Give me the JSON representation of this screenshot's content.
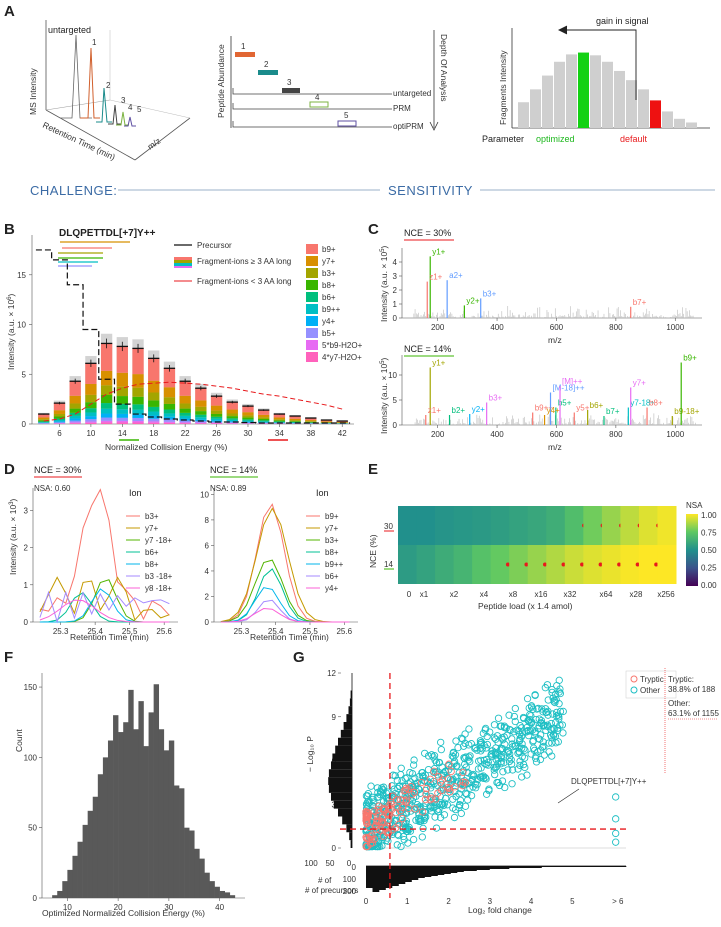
{
  "panels": {
    "A": "A",
    "B": "B",
    "C": "C",
    "D": "D",
    "E": "E",
    "F": "F",
    "G": "G"
  },
  "challenge": {
    "left": "CHALLENGE:",
    "right": "SENSITIVITY"
  },
  "panelA": {
    "chromatogram": {
      "untargeted": "untargeted",
      "ylabel": "MS Intensity",
      "xlabel": "Retention Time (min)",
      "zlabel": "m/z",
      "peaks": [
        "1",
        "2",
        "3",
        "4",
        "5"
      ]
    },
    "depth": {
      "ylabel": "Peptide Abundance",
      "rlabel": "Depth Of Analysis",
      "rows": [
        "untargeted",
        "PRM",
        "optiPRM"
      ],
      "bars": [
        "1",
        "2",
        "3",
        "4",
        "5"
      ]
    },
    "gain": {
      "ylabel": "Fragments Intensity",
      "title": "gain in signal",
      "param": "Parameter",
      "optimized": "optimized",
      "default": "default",
      "bar_values": [
        0.28,
        0.42,
        0.57,
        0.72,
        0.8,
        0.82,
        0.79,
        0.72,
        0.62,
        0.52,
        0.42,
        0.3,
        0.18,
        0.1,
        0.06
      ],
      "optimized_index": 5,
      "default_index": 11
    }
  },
  "panelB": {
    "peptide": "DLQPETTDL[+7]Y++",
    "ylabel": "Intensity (a.u. × 10",
    "ylabel_exp": "6",
    "ylabel_close": ")",
    "xlabel": "Normalized Collision Energy (%)",
    "yticks": [
      "0",
      "5",
      "10",
      "15"
    ],
    "xticks": [
      "6",
      "10",
      "14",
      "18",
      "22",
      "26",
      "30",
      "34",
      "38",
      "42"
    ],
    "legend_lines": [
      "Precursor",
      "Fragment-ions ≥ 3 AA long",
      "Fragment-ions < 3 AA long"
    ],
    "ions": [
      "b9+",
      "y7+",
      "b3+",
      "b8+",
      "b6+",
      "b9++",
      "y4+",
      "b5+",
      "5*b9-H2O+",
      "4*y7-H2O+"
    ],
    "ion_colors": [
      "#f8766d",
      "#d89000",
      "#a3a500",
      "#39b600",
      "#00bf7d",
      "#00bfc4",
      "#00b0f6",
      "#9590ff",
      "#e76bf3",
      "#ff62bc"
    ],
    "nce": [
      4,
      6,
      8,
      10,
      12,
      14,
      16,
      18,
      20,
      22,
      24,
      26,
      28,
      30,
      32,
      34,
      36,
      38,
      40,
      42
    ],
    "stack_totals": [
      1.0,
      2.1,
      4.3,
      6.1,
      8.1,
      7.8,
      7.6,
      6.6,
      5.6,
      4.3,
      3.6,
      2.8,
      2.2,
      1.8,
      1.4,
      1.0,
      0.8,
      0.6,
      0.4,
      0.3
    ],
    "precursor": [
      17.5,
      16.5,
      14.0,
      9.5,
      4.5,
      2.0,
      1.0,
      0.7,
      0.5,
      0.4,
      0.3,
      0.2,
      0.2,
      0.15,
      0.1,
      0.1,
      0.1,
      0.1,
      0.1,
      0.1
    ],
    "small_frag": [
      0.3,
      0.5,
      1.0,
      2.0,
      3.0,
      3.6,
      4.0,
      4.1,
      4.2,
      4.1,
      4.0,
      3.8,
      3.6,
      3.3,
      3.0,
      2.8,
      2.5,
      2.2,
      1.9,
      1.5
    ]
  },
  "panelC": {
    "top": {
      "label": "NCE = 30%",
      "ylabel": "Intensity (a.u. × 10",
      "ylabel_exp": "5",
      "ylabel_close": ")",
      "xlabel": "m/z",
      "yticks": [
        "0",
        "1",
        "2",
        "3",
        "4"
      ],
      "xticks": [
        "200",
        "400",
        "600",
        "800",
        "1000"
      ],
      "peaks": [
        {
          "mz": 175,
          "h": 4.4,
          "label": "y1+",
          "color": "#39b600"
        },
        {
          "mz": 165,
          "h": 2.6,
          "label": "z1+",
          "color": "#f8766d"
        },
        {
          "mz": 232,
          "h": 2.7,
          "label": "a2+",
          "color": "#619cff"
        },
        {
          "mz": 290,
          "h": 0.9,
          "label": "y2+",
          "color": "#39b600"
        },
        {
          "mz": 345,
          "h": 1.4,
          "label": "b3+",
          "color": "#619cff"
        },
        {
          "mz": 850,
          "h": 0.8,
          "label": "b7+",
          "color": "#f8766d"
        }
      ]
    },
    "bottom": {
      "label": "NCE = 14%",
      "ylabel": "Intensity (a.u. × 10",
      "ylabel_exp": "5",
      "ylabel_close": ")",
      "xlabel": "m/z",
      "yticks": [
        "0",
        "5",
        "10"
      ],
      "xticks": [
        "200",
        "400",
        "600",
        "800",
        "1000"
      ],
      "peaks": [
        {
          "mz": 175,
          "h": 11.5,
          "label": "y1+",
          "color": "#a3a500"
        },
        {
          "mz": 160,
          "h": 2.0,
          "label": "z1+",
          "color": "#f8766d"
        },
        {
          "mz": 240,
          "h": 2.0,
          "label": "b2+",
          "color": "#00bf7d"
        },
        {
          "mz": 308,
          "h": 2.2,
          "label": "y2+",
          "color": "#00b0f6"
        },
        {
          "mz": 365,
          "h": 4.5,
          "label": "b3+",
          "color": "#e76bf3"
        },
        {
          "mz": 520,
          "h": 2.5,
          "label": "b9++",
          "color": "#f8766d"
        },
        {
          "mz": 580,
          "h": 6.5,
          "label": "[M-18]++",
          "color": "#619cff"
        },
        {
          "mz": 598,
          "h": 3.5,
          "label": "b5+",
          "color": "#00bf7d"
        },
        {
          "mz": 612,
          "h": 7.8,
          "label": "[M]++",
          "color": "#e76bf3"
        },
        {
          "mz": 560,
          "h": 2.0,
          "label": "y4+",
          "color": "#d89000"
        },
        {
          "mz": 660,
          "h": 2.5,
          "label": "y5+",
          "color": "#f8766d"
        },
        {
          "mz": 705,
          "h": 3.0,
          "label": "b6+",
          "color": "#a3a500"
        },
        {
          "mz": 760,
          "h": 1.8,
          "label": "b7+",
          "color": "#00bf7d"
        },
        {
          "mz": 842,
          "h": 3.5,
          "label": "y7-18+",
          "color": "#00bfc4"
        },
        {
          "mz": 850,
          "h": 7.5,
          "label": "y7+",
          "color": "#e76bf3"
        },
        {
          "mz": 905,
          "h": 3.5,
          "label": "b8+",
          "color": "#f8766d"
        },
        {
          "mz": 990,
          "h": 1.8,
          "label": "b9-18+",
          "color": "#a3a500"
        },
        {
          "mz": 1020,
          "h": 12.5,
          "label": "b9+",
          "color": "#39b600"
        }
      ]
    }
  },
  "panelD": {
    "ylabel": "Intensity (a.u. × 10",
    "ylabel_exp": "3",
    "ylabel_close": ")",
    "xlabel": "Retention Time (min)",
    "xticks": [
      "25.3",
      "25.4",
      "25.5",
      "25.6"
    ],
    "left": {
      "label": "NCE = 30%",
      "nsa": "NSA: 0.60",
      "ion_title": "Ion",
      "yticks": [
        "0",
        "1",
        "2",
        "3"
      ],
      "ions": [
        "b3+",
        "y7+",
        "y7 -18+",
        "b6+",
        "b8+",
        "b3 -18+",
        "y8 -18+"
      ],
      "colors": [
        "#f8766d",
        "#c49a00",
        "#53b400",
        "#00c094",
        "#00b6eb",
        "#a58aff",
        "#fb61d7"
      ]
    },
    "right": {
      "label": "NCE = 14%",
      "nsa": "NSA: 0.89",
      "ion_title": "Ion",
      "yticks": [
        "0",
        "2",
        "4",
        "6",
        "8",
        "10"
      ],
      "ions": [
        "b9+",
        "y7+",
        "b3+",
        "b8+",
        "b9++",
        "b6+",
        "y4+"
      ],
      "colors": [
        "#f8766d",
        "#c49a00",
        "#53b400",
        "#00c094",
        "#00b6eb",
        "#a58aff",
        "#fb61d7"
      ]
    }
  },
  "panelE": {
    "ylabel": "NCE (%)",
    "xlabel": "Peptide load (x 1.4 amol)",
    "rows": [
      "30",
      "14"
    ],
    "xticks": [
      "0",
      "x1",
      "x2",
      "x4",
      "x8",
      "x16",
      "x32",
      "x64",
      "x28",
      "x256"
    ],
    "legend_title": "NSA",
    "legend_ticks": [
      "1.00",
      "0.75",
      "0.50",
      "0.25",
      "0.00"
    ],
    "values_30": [
      0.5,
      0.5,
      0.52,
      0.53,
      0.54,
      0.56,
      0.58,
      0.6,
      0.63,
      0.7,
      0.78,
      0.84,
      0.9,
      0.95,
      0.98
    ],
    "values_14": [
      0.55,
      0.58,
      0.62,
      0.66,
      0.72,
      0.76,
      0.8,
      0.84,
      0.88,
      0.92,
      0.95,
      0.97,
      0.99,
      1.0,
      1.0
    ],
    "dots_30_from": 9,
    "dots_14_from": 5
  },
  "panelF": {
    "ylabel": "Count",
    "xlabel": "Optimized Normalized Collision Energy (%)",
    "yticks": [
      "0",
      "50",
      "100",
      "150"
    ],
    "xticks": [
      "10",
      "20",
      "30",
      "40"
    ],
    "bin_starts": [
      7,
      8,
      9,
      10,
      11,
      12,
      13,
      14,
      15,
      16,
      17,
      18,
      19,
      20,
      21,
      22,
      23,
      24,
      25,
      26,
      27,
      28,
      29,
      30,
      31,
      32,
      33,
      34,
      35,
      36,
      37,
      38,
      39,
      40,
      41,
      42
    ],
    "counts": [
      2,
      5,
      12,
      20,
      30,
      40,
      52,
      62,
      72,
      88,
      100,
      112,
      130,
      118,
      125,
      148,
      120,
      140,
      108,
      132,
      152,
      120,
      105,
      112,
      80,
      78,
      50,
      48,
      35,
      28,
      18,
      12,
      8,
      5,
      4,
      2
    ]
  },
  "panelG": {
    "ylabel": "− Log₁₀ P",
    "xlabel": "Log₂ fold change",
    "yticks": [
      "0",
      "3",
      "6",
      "9",
      "12"
    ],
    "xticks": [
      "0",
      "1",
      "2",
      "3",
      "4",
      "5",
      "> 6"
    ],
    "hist_x_ticks": [
      "100",
      "50",
      "0"
    ],
    "hist_y_ticks": [
      "0",
      "100",
      "200"
    ],
    "hist_label": "# of precursors",
    "legend": [
      "Tryptic",
      "Other"
    ],
    "legend_colors": [
      "#f8766d",
      "#1ebfc4"
    ],
    "side": {
      "tryptic_label": "Tryptic:",
      "tryptic_value": "38.8% of 188",
      "other_label": "Other:",
      "other_value": "63.1% of 1155"
    },
    "annotation": "DLQPETTDL[+7]Y++"
  }
}
